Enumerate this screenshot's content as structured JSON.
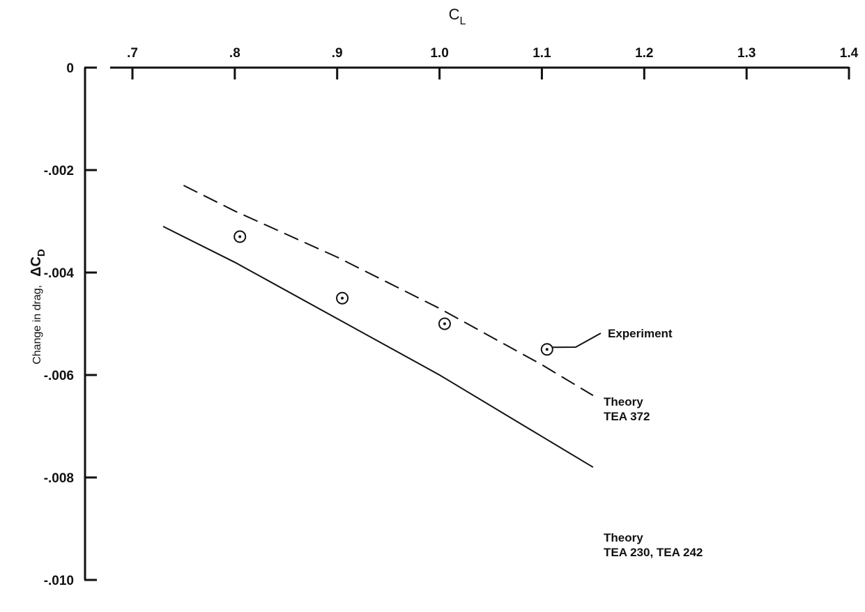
{
  "chart_data": {
    "type": "line",
    "xlabel_main": "C",
    "xlabel_sub": "L",
    "ylabel_text": "Change in drag,",
    "ylabel_symbol": "ΔC",
    "ylabel_sub": "D",
    "xlim": [
      0.7,
      1.4
    ],
    "ylim": [
      -0.01,
      0
    ],
    "x_ticks": [
      {
        "value": 0.7,
        "label": ".7"
      },
      {
        "value": 0.8,
        "label": ".8"
      },
      {
        "value": 0.9,
        "label": ".9"
      },
      {
        "value": 1.0,
        "label": "1.0"
      },
      {
        "value": 1.1,
        "label": "1.1"
      },
      {
        "value": 1.2,
        "label": "1.2"
      },
      {
        "value": 1.3,
        "label": "1.3"
      },
      {
        "value": 1.4,
        "label": "1.4"
      }
    ],
    "y_ticks": [
      {
        "value": 0,
        "label": "0"
      },
      {
        "value": -0.002,
        "label": "-.002"
      },
      {
        "value": -0.004,
        "label": "-.004"
      },
      {
        "value": -0.006,
        "label": "-.006"
      },
      {
        "value": -0.008,
        "label": "-.008"
      },
      {
        "value": -0.01,
        "label": "-.010"
      }
    ],
    "series": [
      {
        "style": "dashed",
        "x": [
          0.75,
          0.8,
          0.9,
          1.0,
          1.1,
          1.15
        ],
        "y": [
          -0.0023,
          -0.0028,
          -0.0037,
          -0.0047,
          -0.0058,
          -0.0064
        ],
        "label_lines": [
          "Theory",
          "TEA 372"
        ]
      },
      {
        "style": "solid",
        "x": [
          0.73,
          0.8,
          0.9,
          1.0,
          1.1,
          1.15
        ],
        "y": [
          -0.0031,
          -0.0038,
          -0.0049,
          -0.006,
          -0.0072,
          -0.0078
        ],
        "label_lines": [
          "Theory",
          "TEA 230, TEA 242"
        ]
      },
      {
        "style": "markers",
        "x": [
          0.805,
          0.905,
          1.005,
          1.105
        ],
        "y": [
          -0.0033,
          -0.0045,
          -0.005,
          -0.0055
        ],
        "label_lines": [
          "Experiment"
        ]
      }
    ],
    "grid": false
  }
}
